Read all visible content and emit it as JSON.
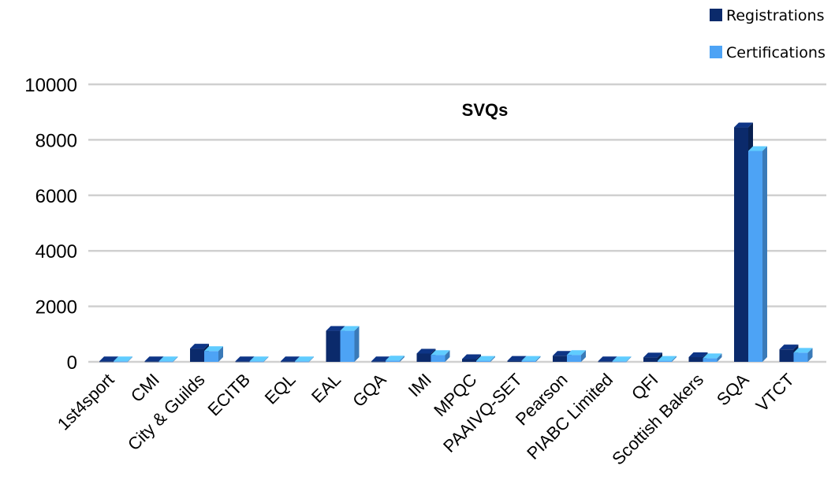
{
  "chart_data": {
    "type": "bar",
    "title": "SVQs",
    "xlabel": "",
    "ylabel": "",
    "ylim": [
      0,
      10000
    ],
    "yticks": [
      0,
      2000,
      4000,
      6000,
      8000,
      10000
    ],
    "grid": true,
    "legend_position": "top-right",
    "categories": [
      "1st4sport",
      "CMI",
      "City & Guilds",
      "ECITB",
      "EQL",
      "EAL",
      "GQA",
      "IMI",
      "MPQC",
      "PAAIVQ-SET",
      "Pearson",
      "PIABC Limited",
      "QFI",
      "Scottish Bakers",
      "SQA",
      "VTCT"
    ],
    "series": [
      {
        "name": "Registrations",
        "color": "#0b2a6b",
        "values": [
          20,
          20,
          480,
          20,
          20,
          1120,
          20,
          300,
          100,
          40,
          220,
          20,
          160,
          170,
          8450,
          450
        ]
      },
      {
        "name": "Certifications",
        "color": "#4da3f5",
        "values": [
          20,
          20,
          390,
          20,
          20,
          1120,
          50,
          250,
          40,
          40,
          250,
          20,
          40,
          130,
          7600,
          330
        ]
      }
    ]
  }
}
